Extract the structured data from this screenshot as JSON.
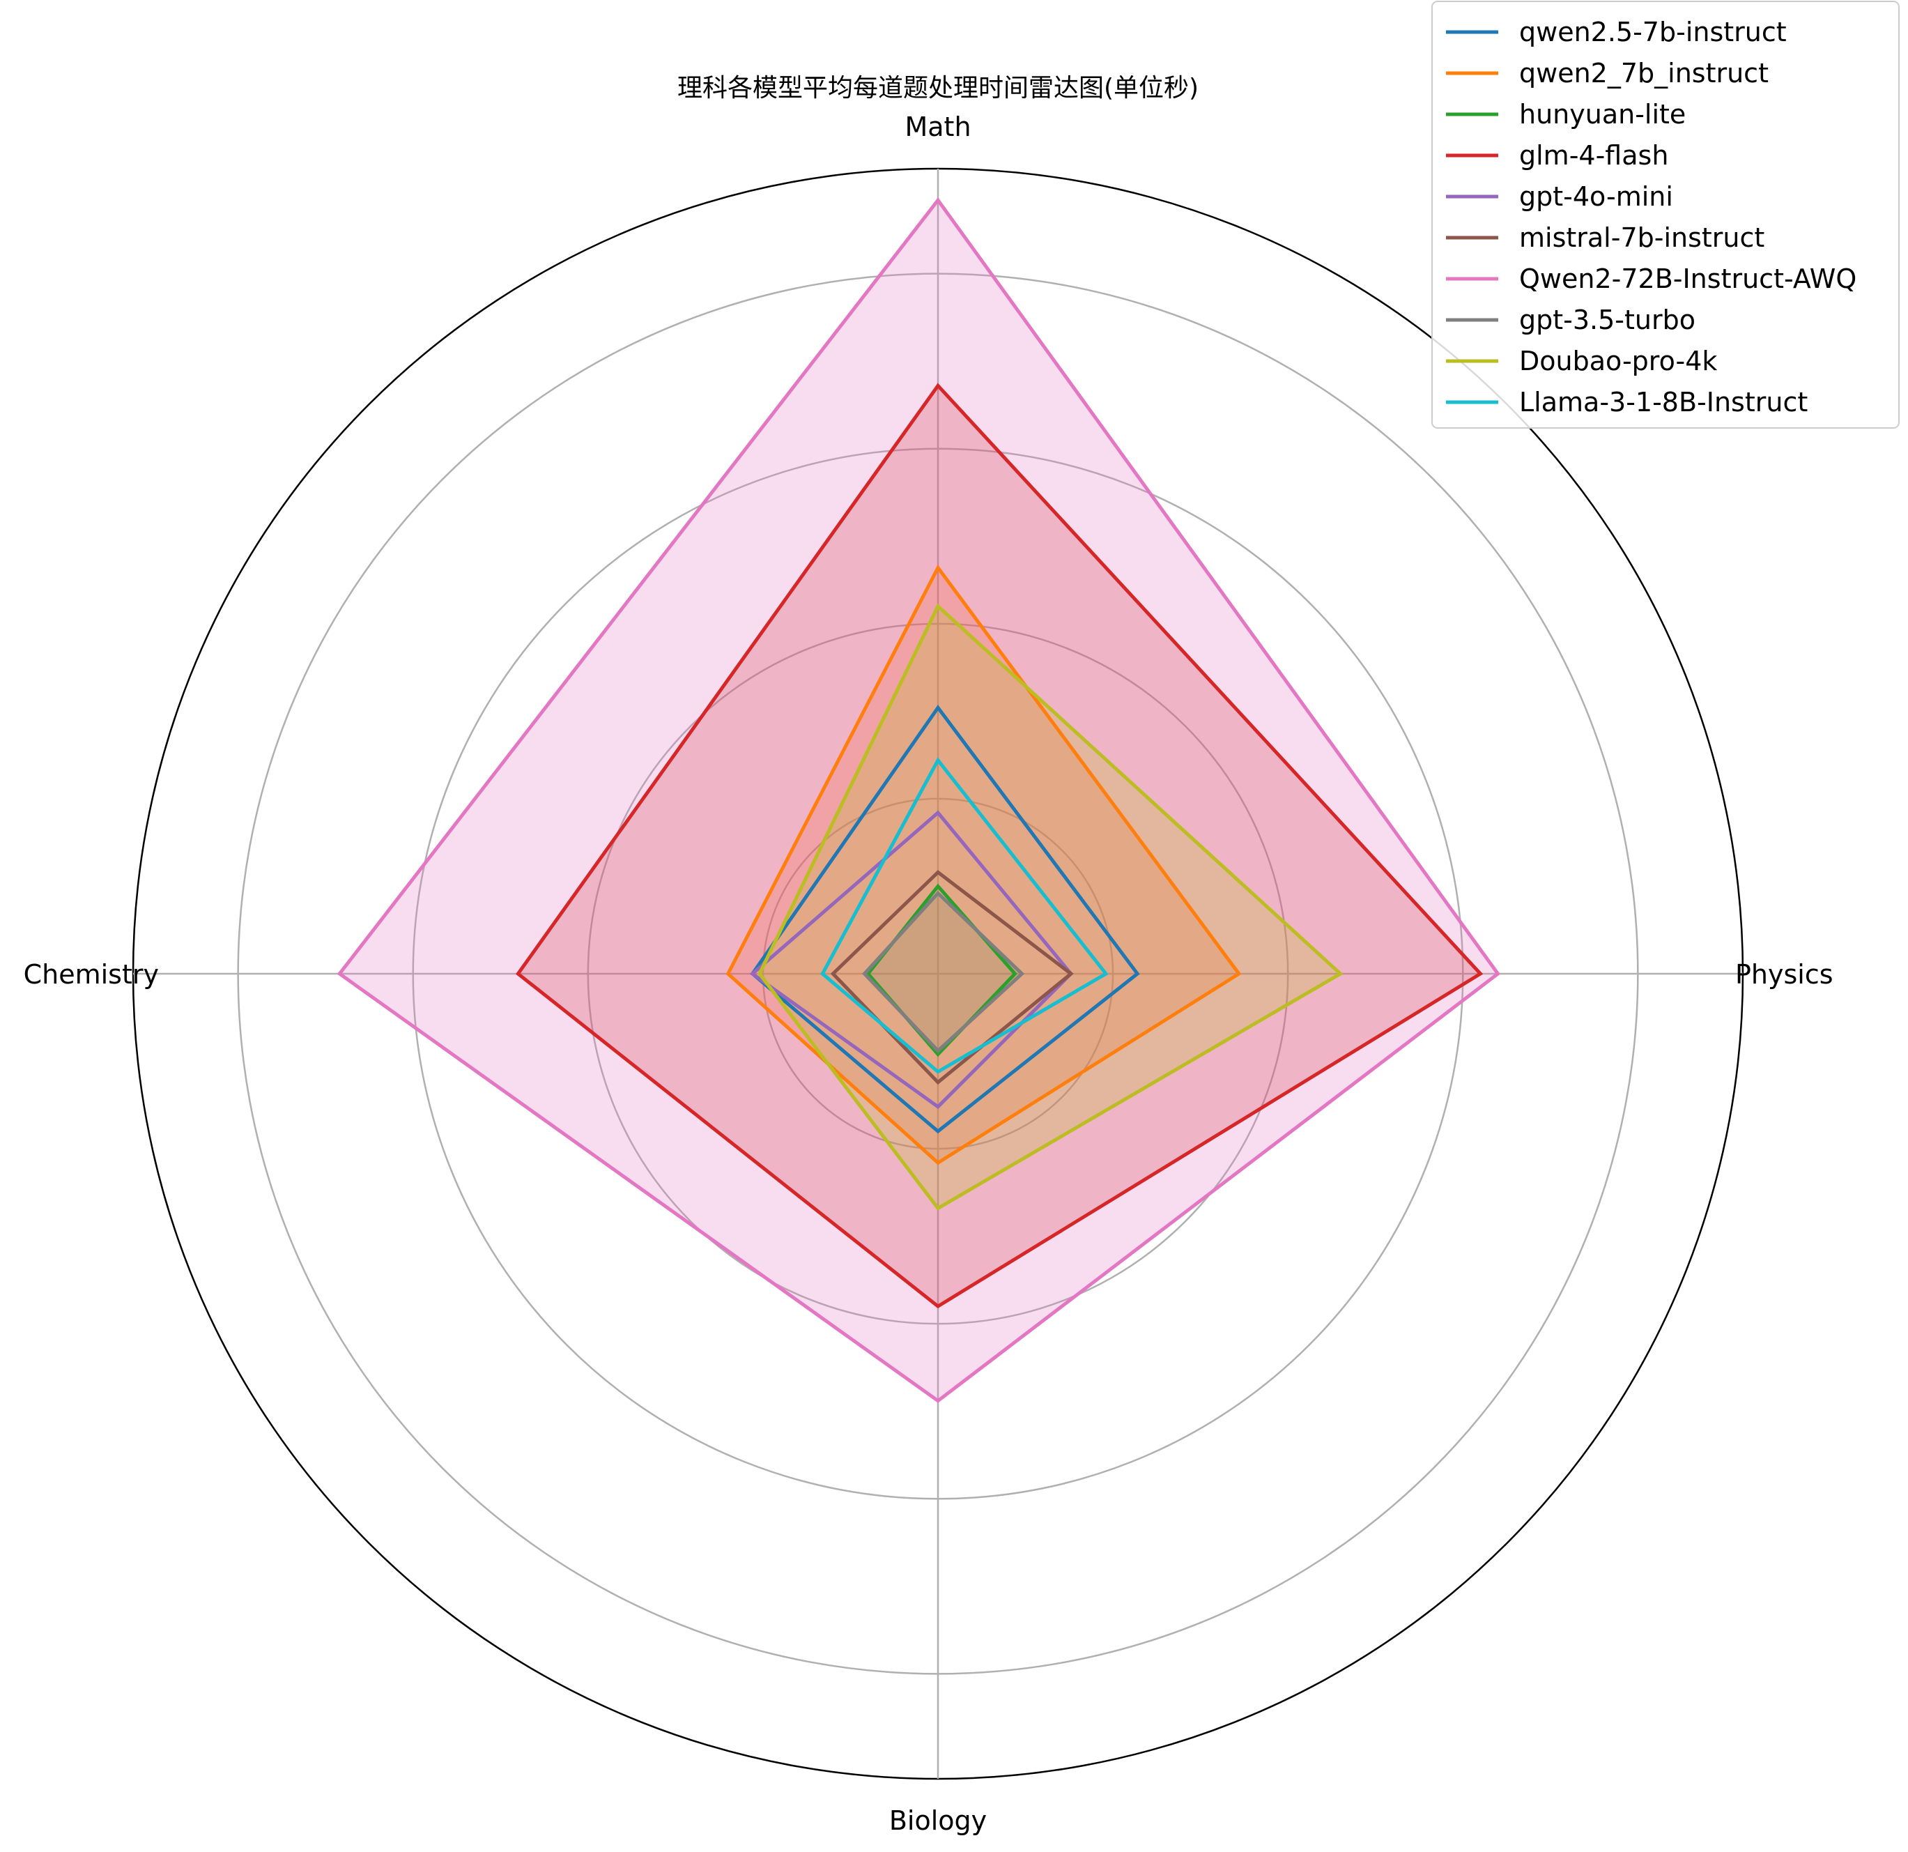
{
  "chart_data": {
    "type": "radar",
    "title": "理科各模型平均每道题处理时间雷达图(单位秒)",
    "axes": [
      "Math",
      "Physics",
      "Biology",
      "Chemistry"
    ],
    "rmax": 23,
    "grid_rings": [
      5,
      10,
      15,
      20,
      23
    ],
    "grid": true,
    "legend_position": "top-right",
    "series": [
      {
        "name": "qwen2.5-7b-instruct",
        "color": "#1f77b4",
        "values": [
          7.6,
          5.7,
          4.5,
          5.3
        ],
        "fill": false
      },
      {
        "name": "qwen2_7b_instruct",
        "color": "#ff7f0e",
        "values": [
          11.6,
          8.6,
          5.4,
          6.0
        ],
        "fill": true
      },
      {
        "name": "hunyuan-lite",
        "color": "#2ca02c",
        "values": [
          2.5,
          2.2,
          2.3,
          2.0
        ],
        "fill": false
      },
      {
        "name": "glm-4-flash",
        "color": "#d62728",
        "values": [
          16.8,
          15.5,
          9.5,
          12.0
        ],
        "fill": true
      },
      {
        "name": "gpt-4o-mini",
        "color": "#9467bd",
        "values": [
          4.6,
          3.8,
          3.8,
          5.3
        ],
        "fill": false
      },
      {
        "name": "mistral-7b-instruct",
        "color": "#8c564b",
        "values": [
          2.9,
          3.8,
          3.1,
          3.0
        ],
        "fill": false
      },
      {
        "name": "Qwen2-72B-Instruct-AWQ",
        "color": "#e377c2",
        "values": [
          22.1,
          16.0,
          12.2,
          17.1
        ],
        "fill": true
      },
      {
        "name": "gpt-3.5-turbo",
        "color": "#7f7f7f",
        "values": [
          2.3,
          2.4,
          2.2,
          2.1
        ],
        "fill": true
      },
      {
        "name": "Doubao-pro-4k",
        "color": "#bcbd22",
        "values": [
          10.5,
          11.5,
          6.7,
          5.1
        ],
        "fill": true
      },
      {
        "name": "Llama-3-1-8B-Instruct",
        "color": "#17becf",
        "values": [
          6.1,
          4.8,
          2.8,
          3.3
        ],
        "fill": false
      }
    ]
  }
}
